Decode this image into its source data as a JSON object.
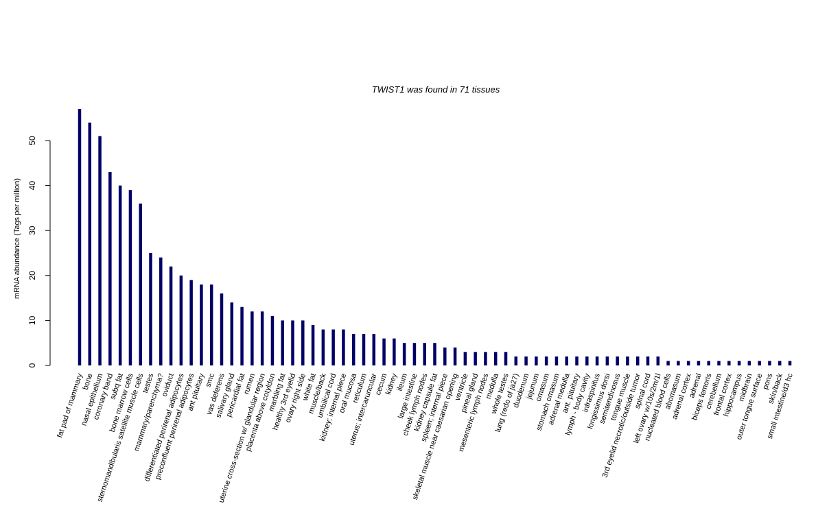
{
  "chart_data": {
    "type": "bar",
    "title": "TWIST1  was found in  71  tissues",
    "xlabel": "",
    "ylabel": "mRNA abundance (Tags per million)",
    "ylim": [
      0,
      57
    ],
    "yticks": [
      0,
      10,
      20,
      30,
      40,
      50
    ],
    "grid": false,
    "legend": "none",
    "bar_color": "#000066",
    "categories": [
      "fat pad of mammary",
      "bone",
      "nasal epithelium",
      "coronary band",
      "subq fat",
      "bone marrow cells",
      "sternomandibularis satellite muscle cells",
      "testes",
      "mammary/parenchyma?",
      "oviduct",
      "differentiated perirenal adipocytes",
      "preconfluent perirenal adipocytes",
      "ant pituitary",
      "smc",
      "vas deferens",
      "salivary gland",
      "pericardial fat",
      "rumen",
      "uterine cross-section w/ glandular region",
      "placenta above cotyldon",
      "marbling fat",
      "healthy 3rd eyelid",
      "ovary right side",
      "white fat",
      "muscle/back",
      "umbilical cord",
      "kidney; internal piece",
      "oral mucosa",
      "reticulum",
      "uterus; intercaruncular",
      "cecum",
      "kidney",
      "ileum",
      "large intestine",
      "cheek lymph nodes",
      "kidney capsule fat",
      "spleen; internal piece",
      "skeletal muscle near caesarian opening",
      "ventricle",
      "pineal gland",
      "mesenteric lymph nodes",
      "medulla",
      "whole testes",
      "lung (redo of ja27)",
      "duodenum",
      "jejunum",
      "omasum",
      "stomach omasum",
      "adrenal medulla",
      "ant. pituitary",
      "lymph - body cavity",
      "infraspinitus",
      "longissimus dorsi",
      "semitendinosus",
      "tongue muscle",
      "3rd eyelid necrotic/outside tumor",
      "spinal cord",
      "left ovary w/10s/2m/1l",
      "nucleated blood cells",
      "abomasum",
      "adrenal cortex",
      "adrenal",
      "biceps femoris",
      "cerebellum",
      "frontal cortex",
      "hippocampus",
      "midbrain",
      "outer tongue surface",
      "pons",
      "skin/back",
      "small intestine/d3 hc"
    ],
    "values": [
      57,
      54,
      51,
      43,
      40,
      39,
      36,
      25,
      24,
      22,
      20,
      19,
      18,
      18,
      16,
      14,
      13,
      12,
      12,
      11,
      10,
      10,
      10,
      9,
      8,
      8,
      8,
      7,
      7,
      7,
      6,
      6,
      5,
      5,
      5,
      5,
      4,
      4,
      3,
      3,
      3,
      3,
      3,
      2,
      2,
      2,
      2,
      2,
      2,
      2,
      2,
      2,
      2,
      2,
      2,
      2,
      2,
      2,
      1,
      1,
      1,
      1,
      1,
      1,
      1,
      1,
      1,
      1,
      1,
      1,
      1
    ]
  }
}
